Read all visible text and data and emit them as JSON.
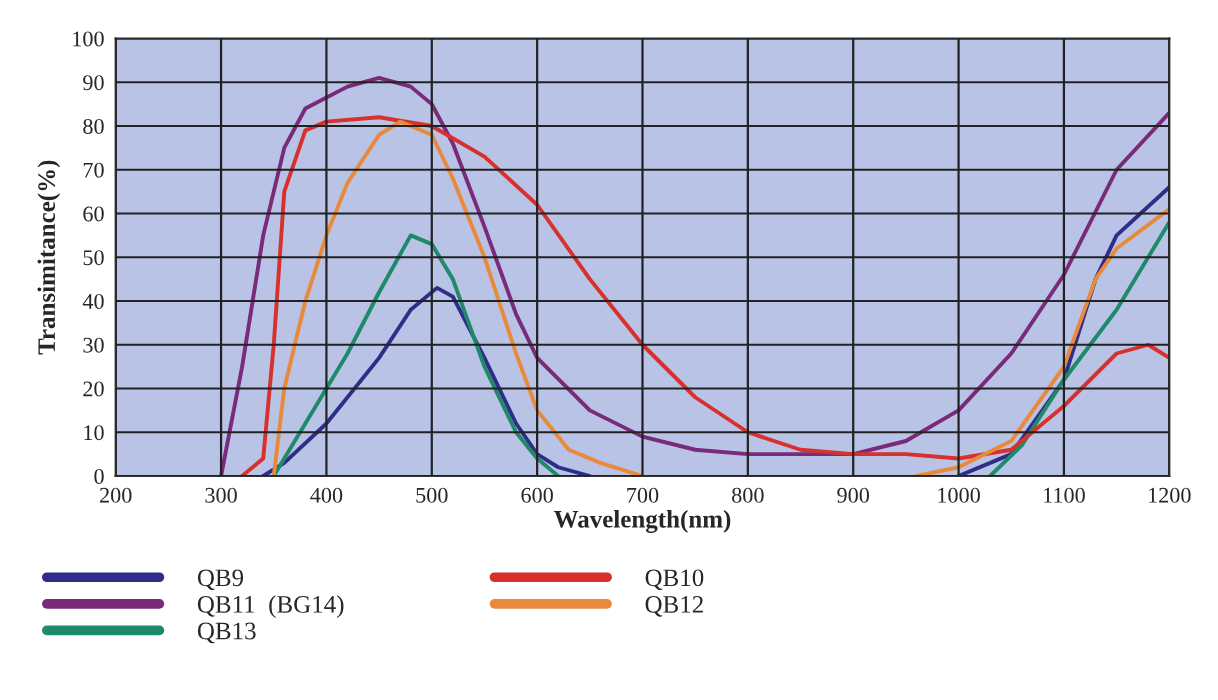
{
  "chart_data": {
    "type": "line",
    "xlabel": "Wavelength(nm)",
    "ylabel": "Transimitance(%)",
    "xlim": [
      200,
      1200
    ],
    "xticks": [
      200,
      300,
      400,
      500,
      600,
      700,
      800,
      900,
      1000,
      1100,
      1200
    ],
    "ylim": [
      0,
      100
    ],
    "yticks": [
      0,
      10,
      20,
      30,
      40,
      50,
      60,
      70,
      80,
      90,
      100
    ],
    "grid": true,
    "legend": "bottom",
    "marker": "none",
    "line_style": "solid",
    "series": [
      {
        "name": "QB9",
        "color": "#2e2e8a",
        "x": [
          340,
          360,
          400,
          450,
          480,
          505,
          520,
          550,
          580,
          600,
          620,
          650,
          800,
          1000,
          1050,
          1100,
          1130,
          1150,
          1200
        ],
        "values": [
          0,
          3,
          12,
          27,
          38,
          43,
          41,
          27,
          12,
          5,
          2,
          0,
          null,
          0,
          5,
          22,
          45,
          55,
          66
        ]
      },
      {
        "name": "QB11  (BG14)",
        "color": "#7a2a7a",
        "x": [
          300,
          320,
          340,
          360,
          380,
          420,
          450,
          480,
          500,
          520,
          550,
          580,
          600,
          650,
          700,
          750,
          800,
          850,
          900,
          950,
          1000,
          1050,
          1100,
          1150,
          1200
        ],
        "values": [
          0,
          25,
          55,
          75,
          84,
          89,
          91,
          89,
          85,
          76,
          57,
          37,
          27,
          15,
          9,
          6,
          5,
          5,
          5,
          8,
          15,
          28,
          46,
          70,
          83
        ]
      },
      {
        "name": "QB13",
        "color": "#1f8a6a",
        "x": [
          350,
          380,
          420,
          450,
          480,
          500,
          520,
          550,
          580,
          600,
          620,
          800,
          1030,
          1060,
          1100,
          1150,
          1200
        ],
        "values": [
          0,
          12,
          28,
          42,
          55,
          53,
          45,
          25,
          10,
          4,
          0,
          null,
          0,
          7,
          22,
          38,
          58
        ]
      },
      {
        "name": "QB10",
        "color": "#d8302c",
        "x": [
          320,
          340,
          350,
          360,
          380,
          400,
          450,
          500,
          550,
          600,
          650,
          700,
          750,
          800,
          850,
          900,
          950,
          1000,
          1050,
          1100,
          1150,
          1180,
          1200
        ],
        "values": [
          0,
          4,
          30,
          65,
          79,
          81,
          82,
          80,
          73,
          62,
          45,
          30,
          18,
          10,
          6,
          5,
          5,
          4,
          6,
          16,
          28,
          30,
          27
        ]
      },
      {
        "name": "QB12",
        "color": "#e88a3a",
        "x": [
          350,
          360,
          380,
          400,
          420,
          450,
          470,
          500,
          520,
          550,
          580,
          600,
          630,
          660,
          700,
          800,
          960,
          1000,
          1050,
          1100,
          1130,
          1150,
          1200
        ],
        "values": [
          0,
          20,
          40,
          55,
          67,
          78,
          81,
          78,
          68,
          50,
          28,
          15,
          6,
          3,
          0,
          null,
          0,
          2,
          8,
          25,
          45,
          52,
          61
        ]
      }
    ]
  }
}
